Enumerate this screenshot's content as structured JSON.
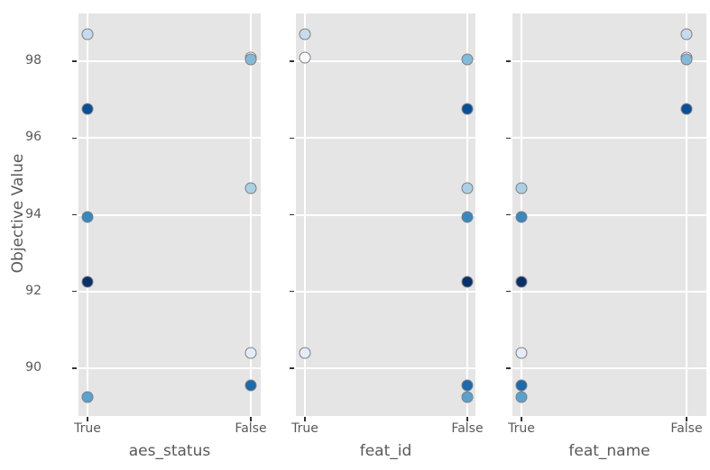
{
  "figure": {
    "background": "#ffffff",
    "panel_bg": "#e5e5e5",
    "grid_color": "#ffffff",
    "text_color": "#595959",
    "tick_mark_color": "#333333",
    "marker_edge_color": "#7f7f7f"
  },
  "chart_data": {
    "type": "scatter",
    "title": "",
    "ylabel": "Objective Value",
    "ylim": [
      88.75,
      99.25
    ],
    "yticks": [
      98,
      96,
      94,
      92,
      90
    ],
    "x_categories": [
      "True",
      "False"
    ],
    "grid": true,
    "legend": "none",
    "colormap": "Blues by trial index (light = early trial, dark = late trial)",
    "subplots": [
      {
        "param": "aes_status",
        "xlabel": "aes_status"
      },
      {
        "param": "feat_id",
        "xlabel": "feat_id"
      },
      {
        "param": "feat_name",
        "xlabel": "feat_name"
      }
    ],
    "trials": [
      {
        "trial": 0,
        "value": 98.1,
        "color": "#f7fbff",
        "aes_status": "False",
        "feat_id": "True",
        "feat_name": "False"
      },
      {
        "trial": 1,
        "value": 90.4,
        "color": "#e2edf8",
        "aes_status": "False",
        "feat_id": "True",
        "feat_name": "True"
      },
      {
        "trial": 2,
        "value": 98.7,
        "color": "#c6dbef",
        "aes_status": "True",
        "feat_id": "True",
        "feat_name": "False"
      },
      {
        "trial": 3,
        "value": 94.7,
        "color": "#abd0e6",
        "aes_status": "False",
        "feat_id": "False",
        "feat_name": "True"
      },
      {
        "trial": 4,
        "value": 98.05,
        "color": "#82badb",
        "aes_status": "False",
        "feat_id": "False",
        "feat_name": "False"
      },
      {
        "trial": 5,
        "value": 89.25,
        "color": "#59a1cf",
        "aes_status": "True",
        "feat_id": "False",
        "feat_name": "True"
      },
      {
        "trial": 6,
        "value": 93.95,
        "color": "#3787c0",
        "aes_status": "True",
        "feat_id": "False",
        "feat_name": "True"
      },
      {
        "trial": 7,
        "value": 89.55,
        "color": "#1b69af",
        "aes_status": "False",
        "feat_id": "False",
        "feat_name": "True"
      },
      {
        "trial": 8,
        "value": 96.75,
        "color": "#084f99",
        "aes_status": "True",
        "feat_id": "False",
        "feat_name": "False"
      },
      {
        "trial": 9,
        "value": 92.25,
        "color": "#08306b",
        "aes_status": "True",
        "feat_id": "False",
        "feat_name": "True"
      }
    ]
  }
}
